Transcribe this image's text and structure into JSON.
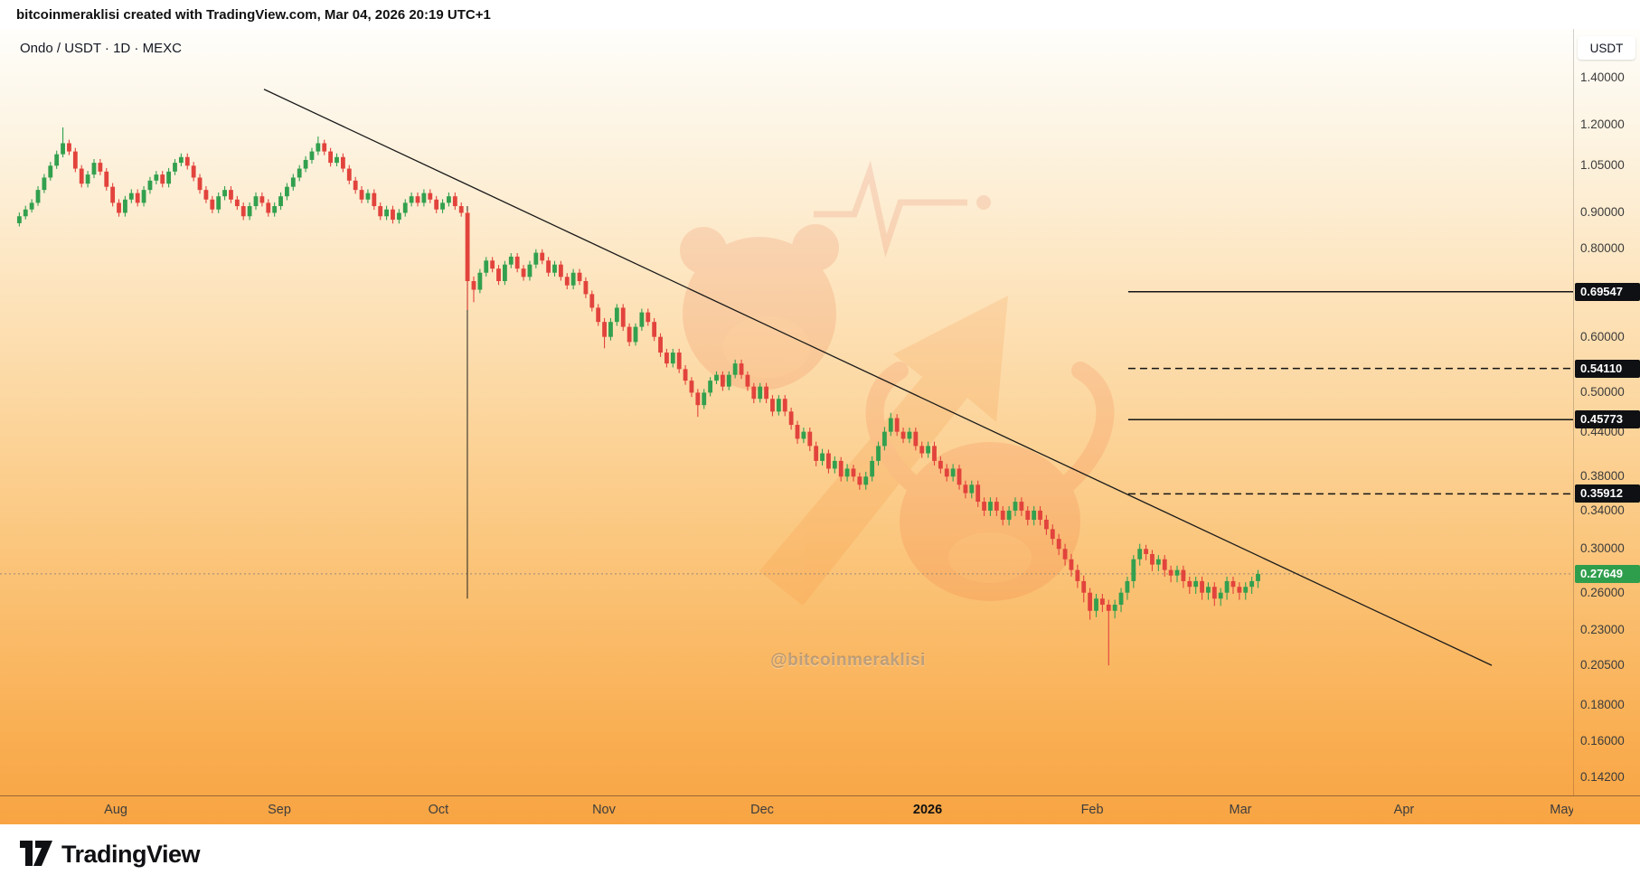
{
  "header": {
    "credit": "bitcoinmeraklisi created with TradingView.com, Mar 04, 2026 20:19 UTC+1"
  },
  "chart": {
    "legend": "Ondo / USDT · 1D · MEXC",
    "currency_label": "USDT",
    "watermark": "@bitcoinmeraklisi"
  },
  "footer": {
    "brand": "TradingView"
  },
  "colors": {
    "up": "#32a04e",
    "down": "#e2433c",
    "level_line": "#141414",
    "trendline": "#1b1b1b",
    "badge_bg": "#0f1013",
    "badge_text": "#ffffff",
    "last_price_badge": "#2f9e4c",
    "last_price_line": "#8a8174"
  },
  "chart_data": {
    "type": "candlestick",
    "title": "Ondo / USDT · 1D · MEXC",
    "symbol": "ONDO/USDT",
    "interval": "1D",
    "exchange": "MEXC",
    "scale": "log",
    "grid": false,
    "y_range": {
      "min": 0.134,
      "max": 1.642
    },
    "y_ticks": [
      "1.40000",
      "1.20000",
      "1.05000",
      "0.90000",
      "0.80000",
      "0.60000",
      "0.50000",
      "0.44000",
      "0.38000",
      "0.34000",
      "0.30000",
      "0.26000",
      "0.23000",
      "0.20500",
      "0.18000",
      "0.16000",
      "0.14200"
    ],
    "x_ticks": [
      {
        "label": "Aug",
        "pos": 0.0736,
        "bold": false
      },
      {
        "label": "Sep",
        "pos": 0.1776,
        "bold": false
      },
      {
        "label": "Oct",
        "pos": 0.2787,
        "bold": false
      },
      {
        "label": "Nov",
        "pos": 0.3839,
        "bold": false
      },
      {
        "label": "Dec",
        "pos": 0.4845,
        "bold": false
      },
      {
        "label": "2026",
        "pos": 0.5897,
        "bold": true
      },
      {
        "label": "Feb",
        "pos": 0.6943,
        "bold": false
      },
      {
        "label": "Mar",
        "pos": 0.7885,
        "bold": false
      },
      {
        "label": "Apr",
        "pos": 0.8925,
        "bold": false
      },
      {
        "label": "May",
        "pos": 0.9931,
        "bold": false
      }
    ],
    "levels": [
      {
        "price": 0.69547,
        "label": "0.69547",
        "style": "solid",
        "start": 0.7172
      },
      {
        "price": 0.5411,
        "label": "0.54110",
        "style": "dashed",
        "start": 0.7172
      },
      {
        "price": 0.45773,
        "label": "0.45773",
        "style": "solid",
        "start": 0.7172
      },
      {
        "price": 0.35912,
        "label": "0.35912",
        "style": "dashed",
        "start": 0.7172
      }
    ],
    "last_price": {
      "value": 0.27649,
      "label": "0.27649",
      "direction": "up"
    },
    "trendline": {
      "x1": 0.1678,
      "p1": 1.348,
      "x2": 0.9483,
      "p2": 0.205
    },
    "vline": {
      "x": 0.2971,
      "p_top": 0.92,
      "p_bottom": 0.255
    },
    "candles_domain": [
      0.0103,
      0.8017
    ],
    "candles": [
      [
        0.87,
        0.901,
        0.861,
        0.89
      ],
      [
        0.89,
        0.921,
        0.881,
        0.91
      ],
      [
        0.91,
        0.941,
        0.901,
        0.93
      ],
      [
        0.93,
        0.982,
        0.921,
        0.97
      ],
      [
        0.97,
        1.022,
        0.96,
        1.01
      ],
      [
        1.01,
        1.063,
        1.0,
        1.05
      ],
      [
        1.05,
        1.103,
        1.039,
        1.09
      ],
      [
        1.09,
        1.19,
        1.079,
        1.13
      ],
      [
        1.13,
        1.143,
        1.087,
        1.1
      ],
      [
        1.1,
        1.113,
        1.028,
        1.04
      ],
      [
        1.04,
        1.052,
        0.978,
        0.99
      ],
      [
        0.99,
        1.032,
        0.978,
        1.02
      ],
      [
        1.02,
        1.073,
        1.008,
        1.06
      ],
      [
        1.06,
        1.073,
        1.018,
        1.03
      ],
      [
        1.03,
        1.042,
        0.968,
        0.98
      ],
      [
        0.98,
        0.992,
        0.919,
        0.93
      ],
      [
        0.93,
        0.941,
        0.889,
        0.9
      ],
      [
        0.9,
        0.951,
        0.889,
        0.94
      ],
      [
        0.94,
        0.972,
        0.929,
        0.96
      ],
      [
        0.96,
        0.972,
        0.919,
        0.93
      ],
      [
        0.93,
        0.982,
        0.919,
        0.97
      ],
      [
        0.97,
        1.012,
        0.958,
        1.0
      ],
      [
        1.0,
        1.032,
        0.988,
        1.02
      ],
      [
        1.02,
        1.032,
        0.978,
        0.99
      ],
      [
        0.99,
        1.042,
        0.978,
        1.03
      ],
      [
        1.03,
        1.073,
        1.018,
        1.06
      ],
      [
        1.06,
        1.093,
        1.048,
        1.08
      ],
      [
        1.08,
        1.093,
        1.037,
        1.05
      ],
      [
        1.05,
        1.063,
        0.998,
        1.01
      ],
      [
        1.01,
        1.022,
        0.958,
        0.97
      ],
      [
        0.97,
        0.982,
        0.929,
        0.94
      ],
      [
        0.94,
        0.951,
        0.899,
        0.91
      ],
      [
        0.91,
        0.962,
        0.899,
        0.95
      ],
      [
        0.95,
        0.982,
        0.938,
        0.97
      ],
      [
        0.97,
        0.982,
        0.929,
        0.94
      ],
      [
        0.94,
        0.951,
        0.909,
        0.92
      ],
      [
        0.92,
        0.931,
        0.879,
        0.89
      ],
      [
        0.89,
        0.931,
        0.879,
        0.92
      ],
      [
        0.92,
        0.962,
        0.909,
        0.95
      ],
      [
        0.95,
        0.962,
        0.919,
        0.93
      ],
      [
        0.93,
        0.941,
        0.889,
        0.9
      ],
      [
        0.9,
        0.931,
        0.889,
        0.92
      ],
      [
        0.92,
        0.962,
        0.909,
        0.95
      ],
      [
        0.95,
        0.992,
        0.938,
        0.98
      ],
      [
        0.98,
        1.022,
        0.968,
        1.01
      ],
      [
        1.01,
        1.052,
        0.998,
        1.04
      ],
      [
        1.04,
        1.083,
        1.028,
        1.07
      ],
      [
        1.07,
        1.113,
        1.057,
        1.1
      ],
      [
        1.1,
        1.155,
        1.087,
        1.13
      ],
      [
        1.13,
        1.143,
        1.087,
        1.1
      ],
      [
        1.1,
        1.113,
        1.047,
        1.06
      ],
      [
        1.06,
        1.093,
        1.048,
        1.08
      ],
      [
        1.08,
        1.093,
        1.028,
        1.04
      ],
      [
        1.04,
        1.052,
        0.988,
        1.0
      ],
      [
        1.0,
        1.012,
        0.958,
        0.97
      ],
      [
        0.97,
        0.982,
        0.929,
        0.94
      ],
      [
        0.94,
        0.972,
        0.929,
        0.96
      ],
      [
        0.96,
        0.972,
        0.909,
        0.92
      ],
      [
        0.92,
        0.931,
        0.879,
        0.89
      ],
      [
        0.89,
        0.921,
        0.879,
        0.91
      ],
      [
        0.91,
        0.921,
        0.869,
        0.88
      ],
      [
        0.88,
        0.911,
        0.869,
        0.9
      ],
      [
        0.9,
        0.941,
        0.889,
        0.93
      ],
      [
        0.93,
        0.962,
        0.919,
        0.95
      ],
      [
        0.95,
        0.962,
        0.919,
        0.93
      ],
      [
        0.93,
        0.972,
        0.919,
        0.96
      ],
      [
        0.96,
        0.972,
        0.929,
        0.94
      ],
      [
        0.94,
        0.951,
        0.899,
        0.91
      ],
      [
        0.91,
        0.941,
        0.899,
        0.93
      ],
      [
        0.93,
        0.962,
        0.919,
        0.95
      ],
      [
        0.95,
        0.962,
        0.909,
        0.92
      ],
      [
        0.92,
        0.931,
        0.889,
        0.9
      ],
      [
        0.9,
        0.905,
        0.655,
        0.72
      ],
      [
        0.72,
        0.731,
        0.672,
        0.7
      ],
      [
        0.7,
        0.749,
        0.692,
        0.74
      ],
      [
        0.74,
        0.779,
        0.731,
        0.77
      ],
      [
        0.77,
        0.779,
        0.741,
        0.75
      ],
      [
        0.75,
        0.759,
        0.711,
        0.72
      ],
      [
        0.72,
        0.769,
        0.711,
        0.76
      ],
      [
        0.76,
        0.789,
        0.751,
        0.78
      ],
      [
        0.78,
        0.789,
        0.741,
        0.75
      ],
      [
        0.75,
        0.759,
        0.721,
        0.73
      ],
      [
        0.73,
        0.769,
        0.721,
        0.76
      ],
      [
        0.76,
        0.799,
        0.751,
        0.79
      ],
      [
        0.79,
        0.799,
        0.761,
        0.77
      ],
      [
        0.77,
        0.779,
        0.731,
        0.74
      ],
      [
        0.74,
        0.769,
        0.731,
        0.76
      ],
      [
        0.76,
        0.769,
        0.721,
        0.73
      ],
      [
        0.73,
        0.739,
        0.701,
        0.71
      ],
      [
        0.71,
        0.749,
        0.701,
        0.74
      ],
      [
        0.74,
        0.749,
        0.711,
        0.72
      ],
      [
        0.72,
        0.729,
        0.681,
        0.69
      ],
      [
        0.69,
        0.698,
        0.652,
        0.66
      ],
      [
        0.66,
        0.668,
        0.622,
        0.63
      ],
      [
        0.63,
        0.638,
        0.578,
        0.6
      ],
      [
        0.6,
        0.638,
        0.593,
        0.63
      ],
      [
        0.63,
        0.668,
        0.622,
        0.66
      ],
      [
        0.66,
        0.668,
        0.612,
        0.62
      ],
      [
        0.62,
        0.627,
        0.582,
        0.59
      ],
      [
        0.59,
        0.627,
        0.583,
        0.62
      ],
      [
        0.62,
        0.658,
        0.612,
        0.65
      ],
      [
        0.65,
        0.658,
        0.622,
        0.63
      ],
      [
        0.63,
        0.638,
        0.592,
        0.6
      ],
      [
        0.6,
        0.607,
        0.562,
        0.57
      ],
      [
        0.57,
        0.577,
        0.543,
        0.55
      ],
      [
        0.55,
        0.577,
        0.543,
        0.57
      ],
      [
        0.57,
        0.577,
        0.533,
        0.54
      ],
      [
        0.54,
        0.547,
        0.513,
        0.52
      ],
      [
        0.52,
        0.526,
        0.493,
        0.5
      ],
      [
        0.5,
        0.506,
        0.462,
        0.48
      ],
      [
        0.48,
        0.506,
        0.474,
        0.5
      ],
      [
        0.5,
        0.526,
        0.494,
        0.52
      ],
      [
        0.52,
        0.536,
        0.514,
        0.53
      ],
      [
        0.53,
        0.536,
        0.503,
        0.51
      ],
      [
        0.51,
        0.536,
        0.504,
        0.53
      ],
      [
        0.53,
        0.557,
        0.524,
        0.55
      ],
      [
        0.55,
        0.557,
        0.523,
        0.53
      ],
      [
        0.53,
        0.536,
        0.503,
        0.51
      ],
      [
        0.51,
        0.516,
        0.483,
        0.49
      ],
      [
        0.49,
        0.516,
        0.484,
        0.51
      ],
      [
        0.51,
        0.516,
        0.483,
        0.49
      ],
      [
        0.49,
        0.496,
        0.463,
        0.47
      ],
      [
        0.47,
        0.496,
        0.464,
        0.49
      ],
      [
        0.49,
        0.496,
        0.463,
        0.47
      ],
      [
        0.47,
        0.476,
        0.443,
        0.45
      ],
      [
        0.45,
        0.456,
        0.423,
        0.43
      ],
      [
        0.43,
        0.446,
        0.424,
        0.44
      ],
      [
        0.44,
        0.446,
        0.413,
        0.42
      ],
      [
        0.42,
        0.426,
        0.393,
        0.4
      ],
      [
        0.4,
        0.416,
        0.394,
        0.41
      ],
      [
        0.41,
        0.415,
        0.384,
        0.39
      ],
      [
        0.39,
        0.406,
        0.384,
        0.4
      ],
      [
        0.4,
        0.405,
        0.374,
        0.38
      ],
      [
        0.38,
        0.396,
        0.374,
        0.39
      ],
      [
        0.39,
        0.395,
        0.374,
        0.38
      ],
      [
        0.38,
        0.385,
        0.364,
        0.37
      ],
      [
        0.37,
        0.386,
        0.364,
        0.38
      ],
      [
        0.38,
        0.406,
        0.374,
        0.4
      ],
      [
        0.4,
        0.426,
        0.394,
        0.42
      ],
      [
        0.42,
        0.447,
        0.414,
        0.44
      ],
      [
        0.44,
        0.468,
        0.434,
        0.46
      ],
      [
        0.46,
        0.466,
        0.434,
        0.44
      ],
      [
        0.44,
        0.446,
        0.424,
        0.43
      ],
      [
        0.43,
        0.446,
        0.424,
        0.44
      ],
      [
        0.44,
        0.446,
        0.414,
        0.42
      ],
      [
        0.42,
        0.426,
        0.404,
        0.41
      ],
      [
        0.41,
        0.426,
        0.404,
        0.42
      ],
      [
        0.42,
        0.426,
        0.394,
        0.4
      ],
      [
        0.4,
        0.406,
        0.384,
        0.39
      ],
      [
        0.39,
        0.396,
        0.374,
        0.38
      ],
      [
        0.38,
        0.396,
        0.374,
        0.39
      ],
      [
        0.39,
        0.395,
        0.364,
        0.37
      ],
      [
        0.37,
        0.375,
        0.354,
        0.36
      ],
      [
        0.36,
        0.375,
        0.354,
        0.37
      ],
      [
        0.37,
        0.375,
        0.344,
        0.35
      ],
      [
        0.35,
        0.355,
        0.334,
        0.34
      ],
      [
        0.34,
        0.355,
        0.334,
        0.35
      ],
      [
        0.35,
        0.355,
        0.334,
        0.34
      ],
      [
        0.34,
        0.345,
        0.324,
        0.33
      ],
      [
        0.33,
        0.345,
        0.324,
        0.34
      ],
      [
        0.34,
        0.355,
        0.334,
        0.35
      ],
      [
        0.35,
        0.355,
        0.334,
        0.34
      ],
      [
        0.34,
        0.345,
        0.324,
        0.33
      ],
      [
        0.33,
        0.345,
        0.324,
        0.34
      ],
      [
        0.34,
        0.345,
        0.324,
        0.33
      ],
      [
        0.33,
        0.335,
        0.314,
        0.32
      ],
      [
        0.32,
        0.325,
        0.304,
        0.31
      ],
      [
        0.31,
        0.315,
        0.294,
        0.3
      ],
      [
        0.3,
        0.305,
        0.284,
        0.29
      ],
      [
        0.29,
        0.295,
        0.274,
        0.28
      ],
      [
        0.28,
        0.285,
        0.264,
        0.27
      ],
      [
        0.27,
        0.275,
        0.252,
        0.26
      ],
      [
        0.26,
        0.264,
        0.238,
        0.245
      ],
      [
        0.245,
        0.259,
        0.24,
        0.255
      ],
      [
        0.255,
        0.259,
        0.244,
        0.25
      ],
      [
        0.25,
        0.254,
        0.205,
        0.245
      ],
      [
        0.245,
        0.254,
        0.239,
        0.25
      ],
      [
        0.25,
        0.264,
        0.244,
        0.26
      ],
      [
        0.26,
        0.274,
        0.254,
        0.27
      ],
      [
        0.27,
        0.294,
        0.264,
        0.29
      ],
      [
        0.29,
        0.305,
        0.284,
        0.3
      ],
      [
        0.3,
        0.304,
        0.289,
        0.295
      ],
      [
        0.295,
        0.299,
        0.279,
        0.285
      ],
      [
        0.285,
        0.294,
        0.279,
        0.29
      ],
      [
        0.29,
        0.294,
        0.274,
        0.28
      ],
      [
        0.28,
        0.284,
        0.269,
        0.275
      ],
      [
        0.275,
        0.284,
        0.269,
        0.28
      ],
      [
        0.28,
        0.284,
        0.264,
        0.27
      ],
      [
        0.27,
        0.274,
        0.259,
        0.265
      ],
      [
        0.265,
        0.274,
        0.259,
        0.27
      ],
      [
        0.27,
        0.274,
        0.254,
        0.26
      ],
      [
        0.26,
        0.269,
        0.254,
        0.265
      ],
      [
        0.265,
        0.269,
        0.249,
        0.255
      ],
      [
        0.255,
        0.264,
        0.249,
        0.26
      ],
      [
        0.26,
        0.274,
        0.254,
        0.27
      ],
      [
        0.27,
        0.274,
        0.259,
        0.265
      ],
      [
        0.265,
        0.269,
        0.254,
        0.26
      ],
      [
        0.26,
        0.269,
        0.254,
        0.265
      ],
      [
        0.265,
        0.274,
        0.259,
        0.27
      ],
      [
        0.27,
        0.28,
        0.264,
        0.27649
      ]
    ]
  }
}
